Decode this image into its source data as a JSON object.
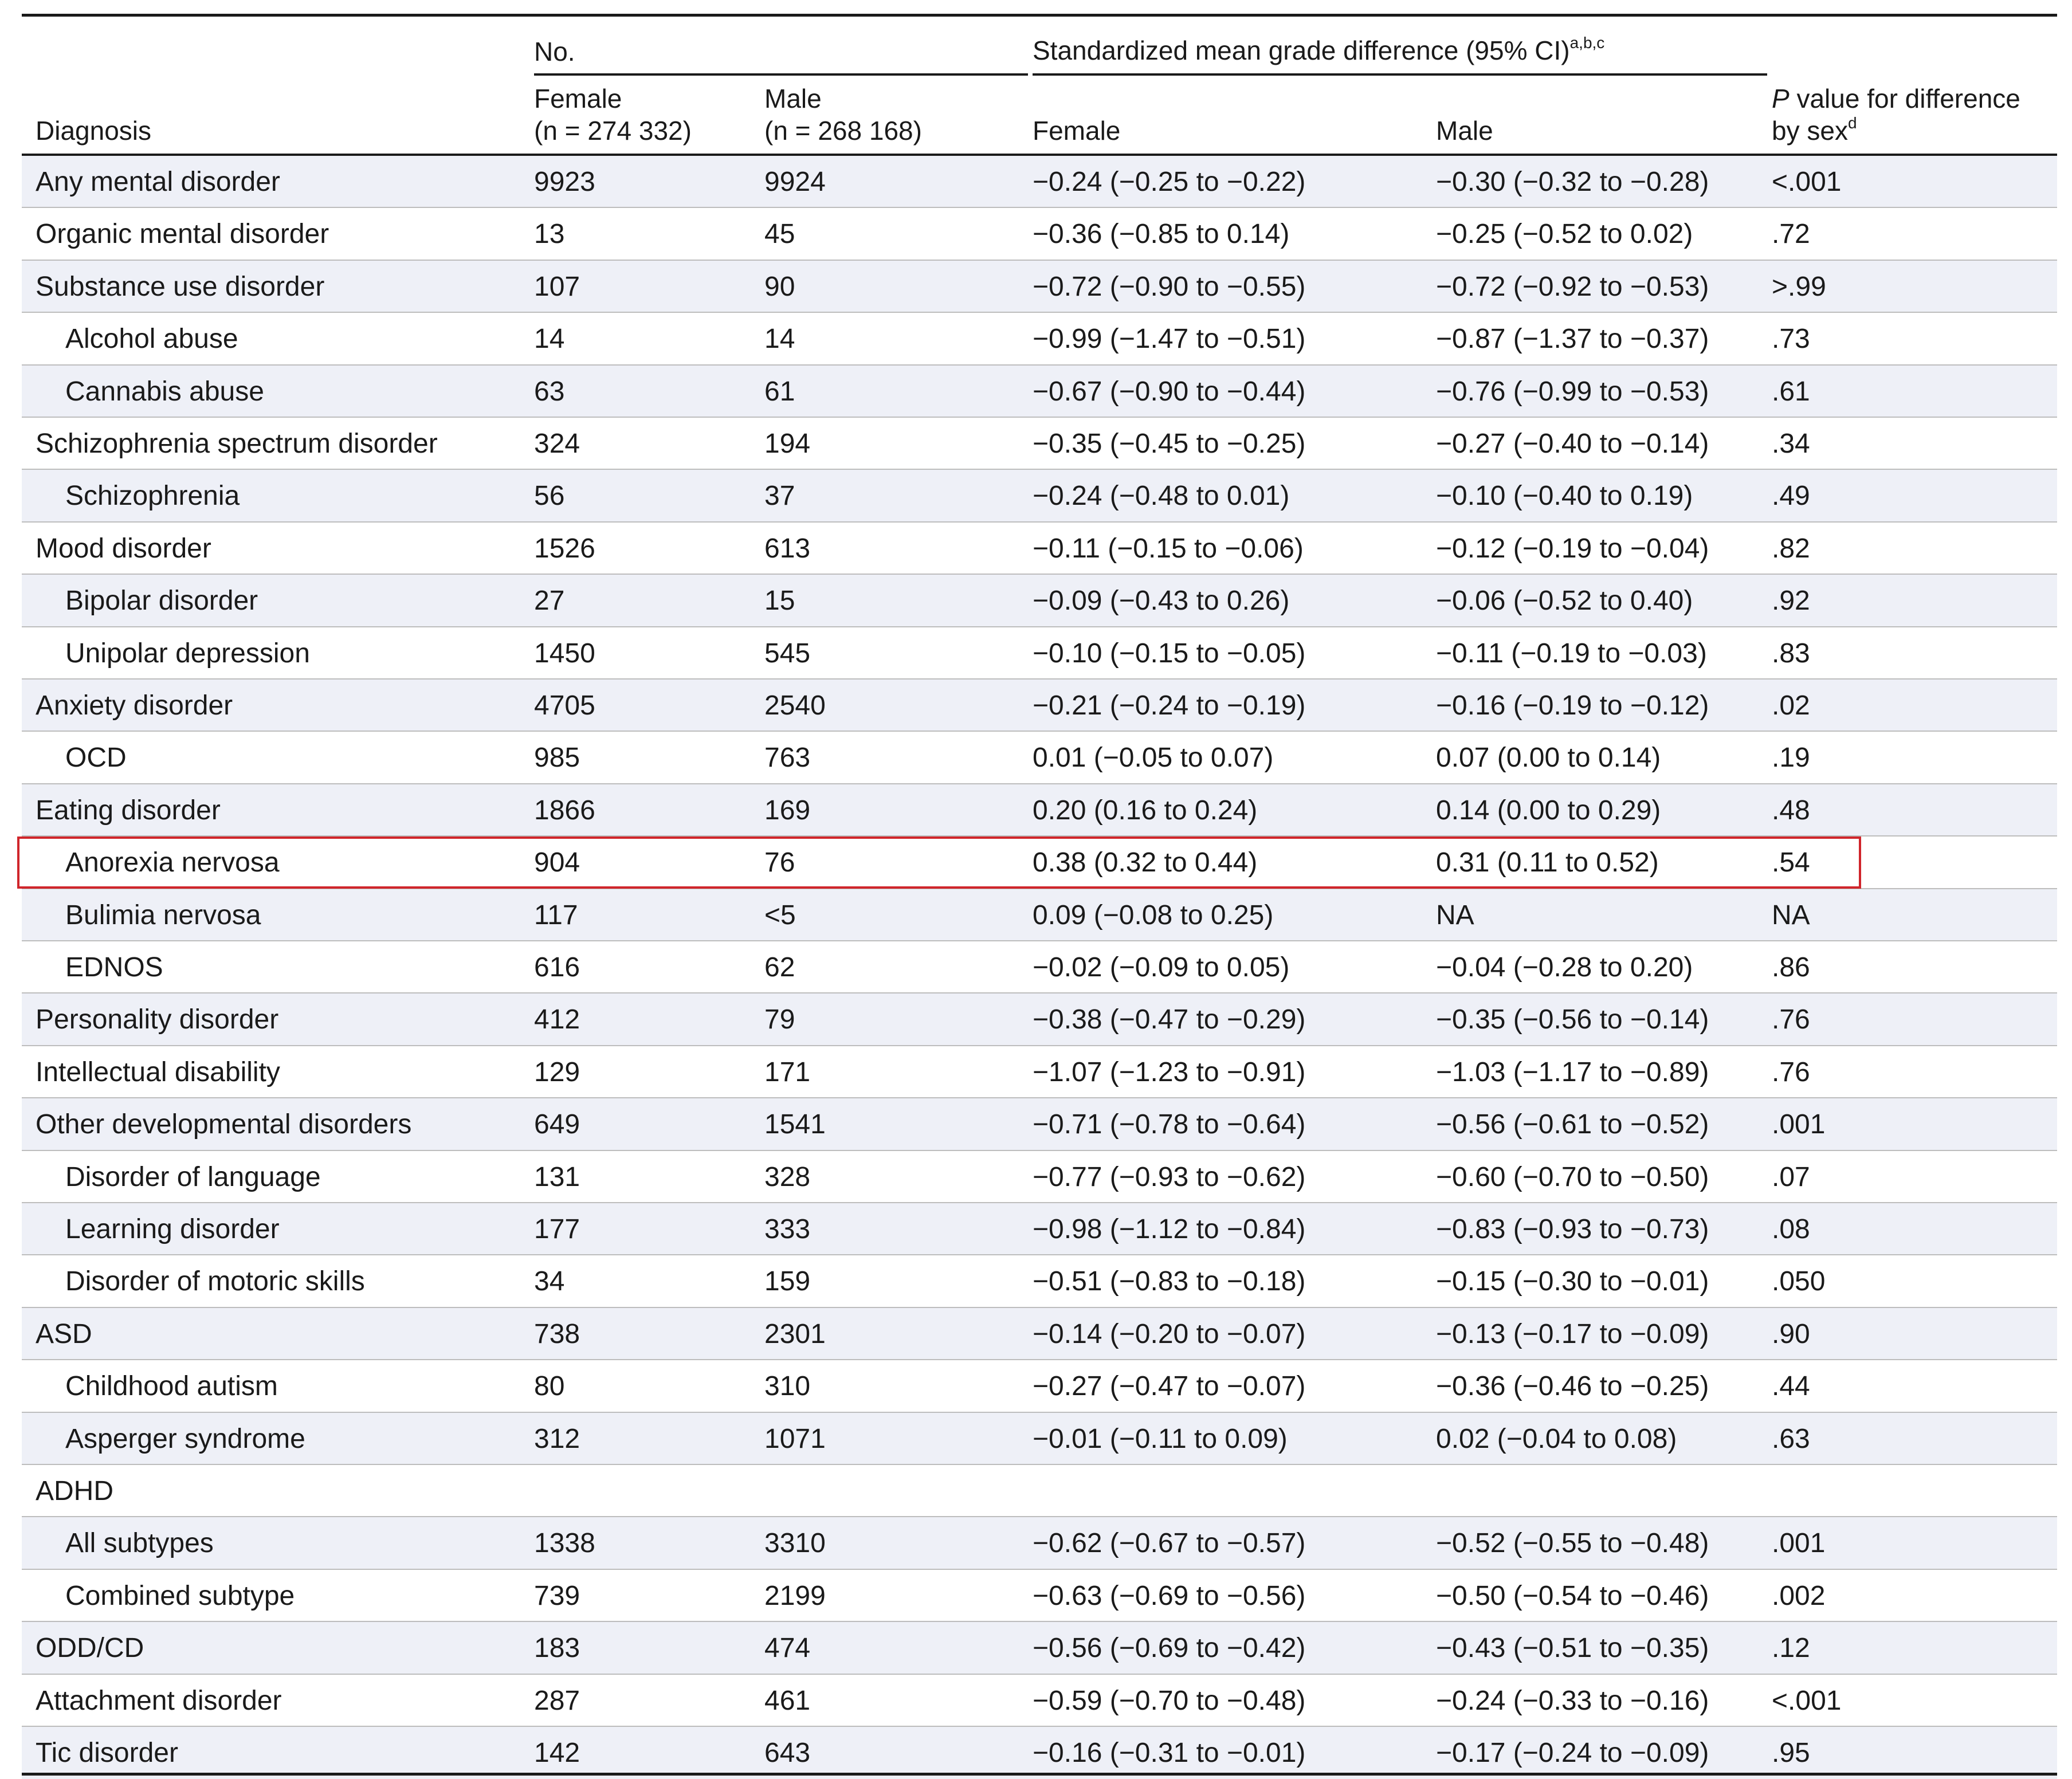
{
  "header": {
    "diagnosis": "Diagnosis",
    "no_group": "No.",
    "smgd_group": "Standardized mean grade difference (95% CI)",
    "smgd_sup": "a,b,c",
    "female_line1": "Female",
    "female_line2": "(n = 274 332)",
    "male_line1": "Male",
    "male_line2": "(n = 268 168)",
    "smgd_female": "Female",
    "smgd_male": "Male",
    "p_line1_italic": "P",
    "p_line1_rest": " value for difference",
    "p_line2": "by sex",
    "p_sup": "d"
  },
  "rows": [
    {
      "diagnosis": "Any mental disorder",
      "sub": false,
      "female_n": "9923",
      "male_n": "9924",
      "female_smgd": "−0.24 (−0.25 to −0.22)",
      "male_smgd": "−0.30 (−0.32 to −0.28)",
      "p": "<.001"
    },
    {
      "diagnosis": "Organic mental disorder",
      "sub": false,
      "female_n": "13",
      "male_n": "45",
      "female_smgd": "−0.36 (−0.85 to 0.14)",
      "male_smgd": "−0.25 (−0.52 to 0.02)",
      "p": ".72"
    },
    {
      "diagnosis": "Substance use disorder",
      "sub": false,
      "female_n": "107",
      "male_n": "90",
      "female_smgd": "−0.72 (−0.90 to −0.55)",
      "male_smgd": "−0.72 (−0.92 to −0.53)",
      "p": ">.99"
    },
    {
      "diagnosis": "Alcohol abuse",
      "sub": true,
      "female_n": "14",
      "male_n": "14",
      "female_smgd": "−0.99 (−1.47 to −0.51)",
      "male_smgd": "−0.87 (−1.37 to −0.37)",
      "p": ".73"
    },
    {
      "diagnosis": "Cannabis abuse",
      "sub": true,
      "female_n": "63",
      "male_n": "61",
      "female_smgd": "−0.67 (−0.90 to −0.44)",
      "male_smgd": "−0.76 (−0.99 to −0.53)",
      "p": ".61"
    },
    {
      "diagnosis": "Schizophrenia spectrum disorder",
      "sub": false,
      "female_n": "324",
      "male_n": "194",
      "female_smgd": "−0.35 (−0.45 to −0.25)",
      "male_smgd": "−0.27 (−0.40 to −0.14)",
      "p": ".34"
    },
    {
      "diagnosis": "Schizophrenia",
      "sub": true,
      "female_n": "56",
      "male_n": "37",
      "female_smgd": "−0.24 (−0.48 to 0.01)",
      "male_smgd": "−0.10 (−0.40 to 0.19)",
      "p": ".49"
    },
    {
      "diagnosis": "Mood disorder",
      "sub": false,
      "female_n": "1526",
      "male_n": "613",
      "female_smgd": "−0.11 (−0.15 to −0.06)",
      "male_smgd": "−0.12 (−0.19 to −0.04)",
      "p": ".82"
    },
    {
      "diagnosis": "Bipolar disorder",
      "sub": true,
      "female_n": "27",
      "male_n": "15",
      "female_smgd": "−0.09 (−0.43 to 0.26)",
      "male_smgd": "−0.06 (−0.52 to 0.40)",
      "p": ".92"
    },
    {
      "diagnosis": "Unipolar depression",
      "sub": true,
      "female_n": "1450",
      "male_n": "545",
      "female_smgd": "−0.10 (−0.15 to −0.05)",
      "male_smgd": "−0.11 (−0.19 to −0.03)",
      "p": ".83"
    },
    {
      "diagnosis": "Anxiety disorder",
      "sub": false,
      "female_n": "4705",
      "male_n": "2540",
      "female_smgd": "−0.21 (−0.24 to −0.19)",
      "male_smgd": "−0.16 (−0.19 to −0.12)",
      "p": ".02"
    },
    {
      "diagnosis": "OCD",
      "sub": true,
      "female_n": "985",
      "male_n": "763",
      "female_smgd": "0.01 (−0.05 to 0.07)",
      "male_smgd": "0.07 (0.00 to 0.14)",
      "p": ".19"
    },
    {
      "diagnosis": "Eating disorder",
      "sub": false,
      "female_n": "1866",
      "male_n": "169",
      "female_smgd": "0.20 (0.16 to 0.24)",
      "male_smgd": "0.14 (0.00 to 0.29)",
      "p": ".48"
    },
    {
      "diagnosis": "Anorexia nervosa",
      "sub": true,
      "female_n": "904",
      "male_n": "76",
      "female_smgd": "0.38 (0.32 to 0.44)",
      "male_smgd": "0.31 (0.11 to 0.52)",
      "p": ".54",
      "highlighted": true
    },
    {
      "diagnosis": "Bulimia nervosa",
      "sub": true,
      "female_n": "117",
      "male_n": "<5",
      "female_smgd": "0.09 (−0.08 to 0.25)",
      "male_smgd": "NA",
      "p": "NA"
    },
    {
      "diagnosis": "EDNOS",
      "sub": true,
      "female_n": "616",
      "male_n": "62",
      "female_smgd": "−0.02 (−0.09 to 0.05)",
      "male_smgd": "−0.04 (−0.28 to 0.20)",
      "p": ".86"
    },
    {
      "diagnosis": "Personality disorder",
      "sub": false,
      "female_n": "412",
      "male_n": "79",
      "female_smgd": "−0.38 (−0.47 to −0.29)",
      "male_smgd": "−0.35 (−0.56 to −0.14)",
      "p": ".76"
    },
    {
      "diagnosis": "Intellectual disability",
      "sub": false,
      "female_n": "129",
      "male_n": "171",
      "female_smgd": "−1.07 (−1.23 to −0.91)",
      "male_smgd": "−1.03 (−1.17 to −0.89)",
      "p": ".76"
    },
    {
      "diagnosis": "Other developmental disorders",
      "sub": false,
      "female_n": "649",
      "male_n": "1541",
      "female_smgd": "−0.71 (−0.78 to −0.64)",
      "male_smgd": "−0.56 (−0.61 to −0.52)",
      "p": ".001"
    },
    {
      "diagnosis": "Disorder of language",
      "sub": true,
      "female_n": "131",
      "male_n": "328",
      "female_smgd": "−0.77 (−0.93 to −0.62)",
      "male_smgd": "−0.60 (−0.70 to −0.50)",
      "p": ".07"
    },
    {
      "diagnosis": "Learning disorder",
      "sub": true,
      "female_n": "177",
      "male_n": "333",
      "female_smgd": "−0.98 (−1.12 to −0.84)",
      "male_smgd": "−0.83 (−0.93 to −0.73)",
      "p": ".08"
    },
    {
      "diagnosis": "Disorder of motoric skills",
      "sub": true,
      "female_n": "34",
      "male_n": "159",
      "female_smgd": "−0.51 (−0.83 to −0.18)",
      "male_smgd": "−0.15 (−0.30 to −0.01)",
      "p": ".050"
    },
    {
      "diagnosis": "ASD",
      "sub": false,
      "female_n": "738",
      "male_n": "2301",
      "female_smgd": "−0.14 (−0.20 to −0.07)",
      "male_smgd": "−0.13 (−0.17 to −0.09)",
      "p": ".90"
    },
    {
      "diagnosis": "Childhood autism",
      "sub": true,
      "female_n": "80",
      "male_n": "310",
      "female_smgd": "−0.27 (−0.47 to −0.07)",
      "male_smgd": "−0.36 (−0.46 to −0.25)",
      "p": ".44"
    },
    {
      "diagnosis": "Asperger syndrome",
      "sub": true,
      "female_n": "312",
      "male_n": "1071",
      "female_smgd": "−0.01 (−0.11 to 0.09)",
      "male_smgd": "0.02 (−0.04 to 0.08)",
      "p": ".63"
    },
    {
      "diagnosis": "ADHD",
      "sub": false,
      "female_n": "",
      "male_n": "",
      "female_smgd": "",
      "male_smgd": "",
      "p": ""
    },
    {
      "diagnosis": "All subtypes",
      "sub": true,
      "female_n": "1338",
      "male_n": "3310",
      "female_smgd": "−0.62 (−0.67 to −0.57)",
      "male_smgd": "−0.52 (−0.55 to −0.48)",
      "p": ".001"
    },
    {
      "diagnosis": "Combined subtype",
      "sub": true,
      "female_n": "739",
      "male_n": "2199",
      "female_smgd": "−0.63 (−0.69 to −0.56)",
      "male_smgd": "−0.50 (−0.54 to −0.46)",
      "p": ".002"
    },
    {
      "diagnosis": "ODD/CD",
      "sub": false,
      "female_n": "183",
      "male_n": "474",
      "female_smgd": "−0.56 (−0.69 to −0.42)",
      "male_smgd": "−0.43 (−0.51 to −0.35)",
      "p": ".12"
    },
    {
      "diagnosis": "Attachment disorder",
      "sub": false,
      "female_n": "287",
      "male_n": "461",
      "female_smgd": "−0.59 (−0.70 to −0.48)",
      "male_smgd": "−0.24 (−0.33 to −0.16)",
      "p": "<.001"
    },
    {
      "diagnosis": "Tic disorder",
      "sub": false,
      "female_n": "142",
      "male_n": "643",
      "female_smgd": "−0.16 (−0.31 to −0.01)",
      "male_smgd": "−0.17 (−0.24 to −0.09)",
      "p": ".95"
    }
  ],
  "colors": {
    "text": "#1a1a1a",
    "shade": "#eef0f7",
    "rule": "#bdbdbd",
    "highlight": "#d0252b"
  }
}
